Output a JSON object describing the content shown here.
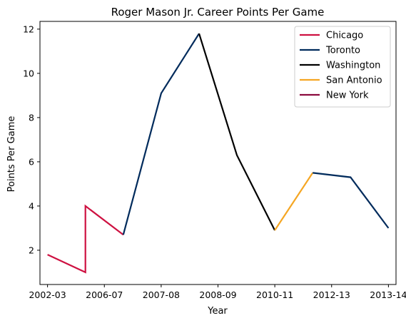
{
  "chart_data": {
    "type": "line",
    "title": "Roger Mason Jr. Career Points Per Game",
    "xlabel": "Year",
    "ylabel": "Points Per Game",
    "xlim": [
      -0.2,
      9.2
    ],
    "ylim": [
      0.45,
      12.35
    ],
    "xticks": [
      {
        "pos": 0,
        "label": "2002-03"
      },
      {
        "pos": 1.5,
        "label": "2006-07"
      },
      {
        "pos": 3,
        "label": "2007-08"
      },
      {
        "pos": 4.5,
        "label": "2008-09"
      },
      {
        "pos": 6,
        "label": "2010-11"
      },
      {
        "pos": 7.5,
        "label": "2012-13"
      },
      {
        "pos": 9,
        "label": "2013-14"
      }
    ],
    "yticks": [
      2,
      4,
      6,
      8,
      10,
      12
    ],
    "grid": false,
    "legend_position": "upper right",
    "series": [
      {
        "name": "Chicago",
        "color": "#CE1141",
        "x": [
          0,
          1,
          1,
          2
        ],
        "y": [
          1.8,
          1.0,
          4.0,
          2.7
        ]
      },
      {
        "name": "Toronto",
        "color": "#002B5C",
        "x": [
          2,
          3,
          4
        ],
        "y": [
          2.7,
          9.1,
          11.8
        ]
      },
      {
        "name": "Washington",
        "color": "#000000",
        "x": [
          4,
          5,
          6
        ],
        "y": [
          11.8,
          6.3,
          2.9
        ]
      },
      {
        "name": "San Antonio",
        "color": "#F5A623",
        "x": [
          6,
          7
        ],
        "y": [
          2.9,
          5.5
        ]
      },
      {
        "name": "Toronto",
        "color": "#002B5C",
        "x": [
          7,
          8,
          9
        ],
        "y": [
          5.5,
          5.3,
          3.0
        ],
        "in_legend": false
      },
      {
        "name": "New York",
        "color": "#8B0A3E",
        "x": [],
        "y": []
      }
    ]
  }
}
